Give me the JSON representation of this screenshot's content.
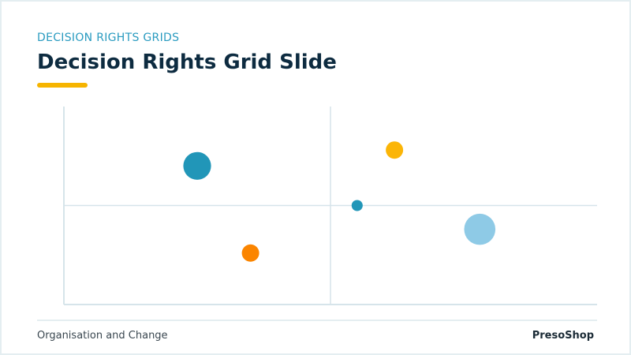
{
  "header": {
    "kicker": "DECISION RIGHTS GRIDS",
    "title": "Decision Rights Grid Slide"
  },
  "footer": {
    "left": "Organisation and Change",
    "right": "PresoShop"
  },
  "colors": {
    "accent_teal": "#2a9bc0",
    "title_navy": "#0d2b40",
    "accent_yellow": "#f6b400",
    "accent_orange": "#fb8500",
    "light_blue": "#8ecae6",
    "grid_line": "#d6e4ea"
  },
  "chart_data": {
    "type": "scatter",
    "title": "",
    "xlabel": "",
    "ylabel": "",
    "xlim": [
      0,
      100
    ],
    "ylim": [
      0,
      100
    ],
    "grid": "quadrant divider lines",
    "points": [
      {
        "x": 25,
        "y": 70,
        "size": 4,
        "color": "#2196b8"
      },
      {
        "x": 35,
        "y": 26,
        "size": 2.5,
        "color": "#fb8500"
      },
      {
        "x": 62,
        "y": 78,
        "size": 2.5,
        "color": "#fbb507"
      },
      {
        "x": 55,
        "y": 50,
        "size": 1.6,
        "color": "#2196b8"
      },
      {
        "x": 78,
        "y": 38,
        "size": 4.5,
        "color": "#8ecae6"
      }
    ]
  }
}
